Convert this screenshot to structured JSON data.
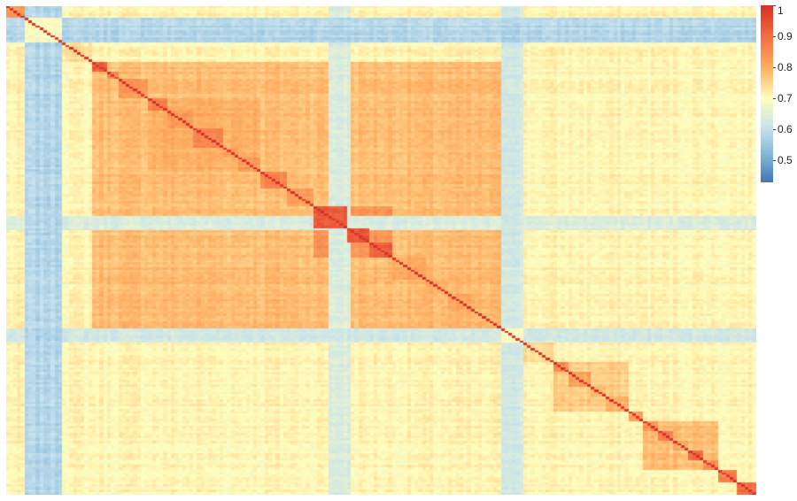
{
  "chart_data": {
    "type": "heatmap",
    "title": "",
    "xlabel": "",
    "ylabel": "",
    "grid": false,
    "legend_position": "right",
    "color_scale": {
      "min": 0.43,
      "max": 1.0,
      "stops": [
        {
          "value": 0.43,
          "color": "#4575b4"
        },
        {
          "value": 0.5,
          "color": "#74add1"
        },
        {
          "value": 0.6,
          "color": "#c5e1ee"
        },
        {
          "value": 0.7,
          "color": "#fffebe"
        },
        {
          "value": 0.8,
          "color": "#fdae61"
        },
        {
          "value": 0.9,
          "color": "#f46d43"
        },
        {
          "value": 1.0,
          "color": "#d73027"
        }
      ],
      "ticks": [
        {
          "value": 1.0,
          "label": "1"
        },
        {
          "value": 0.9,
          "label": "0.9"
        },
        {
          "value": 0.8,
          "label": "0.8"
        },
        {
          "value": 0.7,
          "label": "0.7"
        },
        {
          "value": 0.6,
          "label": "0.6"
        },
        {
          "value": 0.5,
          "label": "0.5"
        }
      ]
    },
    "matrix_size": 200,
    "base_value": 0.71,
    "blocks": [
      {
        "start": 0,
        "end": 5,
        "value": 0.83
      },
      {
        "start": 5,
        "end": 15,
        "value": 0.69
      },
      {
        "start": 15,
        "end": 23,
        "value": 0.74
      },
      {
        "start": 23,
        "end": 27,
        "value": 0.93
      },
      {
        "start": 27,
        "end": 30,
        "value": 0.86
      },
      {
        "start": 30,
        "end": 38,
        "value": 0.83
      },
      {
        "start": 38,
        "end": 43,
        "value": 0.87
      },
      {
        "start": 43,
        "end": 50,
        "value": 0.83
      },
      {
        "start": 50,
        "end": 58,
        "value": 0.86
      },
      {
        "start": 58,
        "end": 62,
        "value": 0.83
      },
      {
        "start": 62,
        "end": 68,
        "value": 0.84
      },
      {
        "start": 68,
        "end": 75,
        "value": 0.86
      },
      {
        "start": 75,
        "end": 82,
        "value": 0.83
      },
      {
        "start": 82,
        "end": 91,
        "value": 0.93
      },
      {
        "start": 91,
        "end": 97,
        "value": 0.94
      },
      {
        "start": 97,
        "end": 103,
        "value": 0.92
      },
      {
        "start": 103,
        "end": 112,
        "value": 0.81
      },
      {
        "start": 112,
        "end": 118,
        "value": 0.8
      },
      {
        "start": 118,
        "end": 125,
        "value": 0.8
      },
      {
        "start": 125,
        "end": 132,
        "value": 0.78
      },
      {
        "start": 132,
        "end": 138,
        "value": 0.7
      },
      {
        "start": 138,
        "end": 146,
        "value": 0.74
      },
      {
        "start": 146,
        "end": 150,
        "value": 0.85
      },
      {
        "start": 150,
        "end": 156,
        "value": 0.82
      },
      {
        "start": 156,
        "end": 160,
        "value": 0.79
      },
      {
        "start": 160,
        "end": 166,
        "value": 0.79
      },
      {
        "start": 166,
        "end": 170,
        "value": 0.82
      },
      {
        "start": 170,
        "end": 174,
        "value": 0.84
      },
      {
        "start": 174,
        "end": 178,
        "value": 0.87
      },
      {
        "start": 178,
        "end": 182,
        "value": 0.81
      },
      {
        "start": 182,
        "end": 186,
        "value": 0.9
      },
      {
        "start": 186,
        "end": 190,
        "value": 0.85
      },
      {
        "start": 190,
        "end": 195,
        "value": 0.88
      },
      {
        "start": 195,
        "end": 200,
        "value": 0.9
      }
    ],
    "superblocks": [
      {
        "start": 23,
        "end": 132,
        "value": 0.78
      },
      {
        "start": 82,
        "end": 103,
        "value": 0.84
      },
      {
        "start": 38,
        "end": 68,
        "value": 0.8
      },
      {
        "start": 146,
        "end": 166,
        "value": 0.76
      },
      {
        "start": 170,
        "end": 190,
        "value": 0.78
      }
    ],
    "low_bands": [
      {
        "start": 5,
        "end": 15,
        "value": 0.58
      },
      {
        "start": 86,
        "end": 92,
        "value": 0.64
      },
      {
        "start": 132,
        "end": 138,
        "value": 0.63
      }
    ],
    "diagonal_value": 1.0
  }
}
